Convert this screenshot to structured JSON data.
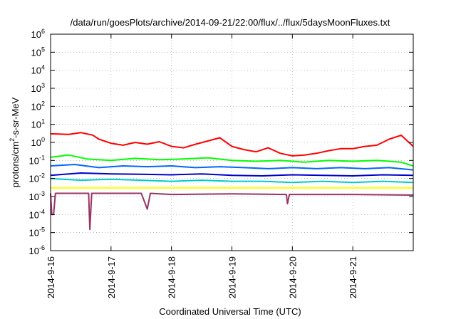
{
  "chart_data": {
    "type": "line",
    "title": "/data/run/goesPlots/archive/2014-09-21/22:00/flux/../flux/5daysMoonFluxes.txt",
    "xlabel": "Coordinated Universal Time (UTC)",
    "ylabel_main": "protons/cm",
    "ylabel_sup": "2",
    "ylabel_rest": "-s-sr-MeV",
    "yscale": "log",
    "ylim_exp": [
      -6,
      6
    ],
    "y_ticks": [
      {
        "exp": -6,
        "base": "10",
        "sup": "-6"
      },
      {
        "exp": -5,
        "base": "10",
        "sup": "-5"
      },
      {
        "exp": -4,
        "base": "10",
        "sup": "-4"
      },
      {
        "exp": -3,
        "base": "10",
        "sup": "-3"
      },
      {
        "exp": -2,
        "base": "10",
        "sup": "-2"
      },
      {
        "exp": -1,
        "base": "10",
        "sup": "-1"
      },
      {
        "exp": 0,
        "base": "10",
        "sup": "0"
      },
      {
        "exp": 1,
        "base": "10",
        "sup": "1"
      },
      {
        "exp": 2,
        "base": "10",
        "sup": "2"
      },
      {
        "exp": 3,
        "base": "10",
        "sup": "3"
      },
      {
        "exp": 4,
        "base": "10",
        "sup": "4"
      },
      {
        "exp": 5,
        "base": "10",
        "sup": "5"
      },
      {
        "exp": 6,
        "base": "10",
        "sup": "6"
      }
    ],
    "xlim_days": [
      0,
      6.0
    ],
    "x_ticks": [
      {
        "day": 0,
        "label": "2014-9-16"
      },
      {
        "day": 1,
        "label": "2014-9-17"
      },
      {
        "day": 2,
        "label": "2014-9-18"
      },
      {
        "day": 3,
        "label": "2014-9-19"
      },
      {
        "day": 4,
        "label": "2014-9-20"
      },
      {
        "day": 5,
        "label": "2014-9-21"
      }
    ],
    "grid": true,
    "series": [
      {
        "color": "#ff0000",
        "points": [
          [
            0.0,
            3.0
          ],
          [
            0.3,
            2.8
          ],
          [
            0.5,
            3.5
          ],
          [
            0.7,
            2.5
          ],
          [
            0.8,
            1.5
          ],
          [
            1.0,
            0.9
          ],
          [
            1.2,
            0.7
          ],
          [
            1.4,
            1.0
          ],
          [
            1.6,
            0.8
          ],
          [
            1.8,
            1.1
          ],
          [
            2.0,
            0.6
          ],
          [
            2.2,
            0.5
          ],
          [
            2.4,
            0.8
          ],
          [
            2.6,
            1.2
          ],
          [
            2.8,
            1.8
          ],
          [
            3.0,
            0.6
          ],
          [
            3.2,
            0.4
          ],
          [
            3.4,
            0.3
          ],
          [
            3.6,
            0.5
          ],
          [
            3.8,
            0.25
          ],
          [
            4.0,
            0.18
          ],
          [
            4.2,
            0.2
          ],
          [
            4.4,
            0.25
          ],
          [
            4.6,
            0.35
          ],
          [
            4.8,
            0.45
          ],
          [
            5.0,
            0.45
          ],
          [
            5.2,
            0.6
          ],
          [
            5.4,
            0.7
          ],
          [
            5.6,
            1.5
          ],
          [
            5.8,
            2.5
          ],
          [
            6.0,
            0.6
          ]
        ]
      },
      {
        "color": "#00ff00",
        "points": [
          [
            0.0,
            0.15
          ],
          [
            0.3,
            0.2
          ],
          [
            0.6,
            0.12
          ],
          [
            1.0,
            0.1
          ],
          [
            1.4,
            0.13
          ],
          [
            1.8,
            0.11
          ],
          [
            2.2,
            0.12
          ],
          [
            2.6,
            0.14
          ],
          [
            3.0,
            0.1
          ],
          [
            3.4,
            0.09
          ],
          [
            3.8,
            0.1
          ],
          [
            4.2,
            0.08
          ],
          [
            4.6,
            0.1
          ],
          [
            5.0,
            0.09
          ],
          [
            5.4,
            0.1
          ],
          [
            5.8,
            0.08
          ],
          [
            6.0,
            0.05
          ]
        ]
      },
      {
        "color": "#0066ff",
        "points": [
          [
            0.0,
            0.05
          ],
          [
            0.4,
            0.06
          ],
          [
            0.8,
            0.04
          ],
          [
            1.2,
            0.05
          ],
          [
            1.6,
            0.045
          ],
          [
            2.0,
            0.05
          ],
          [
            2.4,
            0.04
          ],
          [
            2.8,
            0.045
          ],
          [
            3.2,
            0.04
          ],
          [
            3.6,
            0.035
          ],
          [
            4.0,
            0.04
          ],
          [
            4.4,
            0.035
          ],
          [
            4.8,
            0.04
          ],
          [
            5.2,
            0.035
          ],
          [
            5.6,
            0.04
          ],
          [
            6.0,
            0.03
          ]
        ]
      },
      {
        "color": "#0000cc",
        "points": [
          [
            0.0,
            0.015
          ],
          [
            0.5,
            0.02
          ],
          [
            1.0,
            0.018
          ],
          [
            1.5,
            0.017
          ],
          [
            2.0,
            0.016
          ],
          [
            2.5,
            0.018
          ],
          [
            3.0,
            0.015
          ],
          [
            3.5,
            0.014
          ],
          [
            4.0,
            0.016
          ],
          [
            4.5,
            0.015
          ],
          [
            5.0,
            0.014
          ],
          [
            5.5,
            0.016
          ],
          [
            6.0,
            0.015
          ]
        ]
      },
      {
        "color": "#00cccc",
        "points": [
          [
            0.0,
            0.01
          ],
          [
            0.5,
            0.008
          ],
          [
            1.0,
            0.009
          ],
          [
            1.5,
            0.008
          ],
          [
            2.0,
            0.007
          ],
          [
            2.5,
            0.008
          ],
          [
            3.0,
            0.007
          ],
          [
            3.5,
            0.007
          ],
          [
            4.0,
            0.006
          ],
          [
            4.5,
            0.007
          ],
          [
            5.0,
            0.006
          ],
          [
            5.5,
            0.007
          ],
          [
            6.0,
            0.006
          ]
        ]
      },
      {
        "color": "#ffff00",
        "points": [
          [
            0.0,
            0.003
          ],
          [
            1.0,
            0.003
          ],
          [
            2.0,
            0.003
          ],
          [
            3.0,
            0.003
          ],
          [
            4.0,
            0.003
          ],
          [
            5.0,
            0.003
          ],
          [
            6.0,
            0.003
          ]
        ]
      },
      {
        "color": "#993366",
        "points": [
          [
            0.0,
            0.0015
          ],
          [
            0.02,
            0.0001
          ],
          [
            0.05,
            0.0001
          ],
          [
            0.08,
            0.0015
          ],
          [
            0.5,
            0.0015
          ],
          [
            0.63,
            0.0015
          ],
          [
            0.65,
            1.5e-05
          ],
          [
            0.68,
            0.0015
          ],
          [
            1.5,
            0.0015
          ],
          [
            1.6,
            0.0002
          ],
          [
            1.65,
            0.0015
          ],
          [
            2.0,
            0.0013
          ],
          [
            3.0,
            0.0014
          ],
          [
            3.9,
            0.0013
          ],
          [
            3.92,
            0.0004
          ],
          [
            3.95,
            0.0013
          ],
          [
            5.0,
            0.0013
          ],
          [
            6.0,
            0.0012
          ]
        ]
      }
    ]
  }
}
